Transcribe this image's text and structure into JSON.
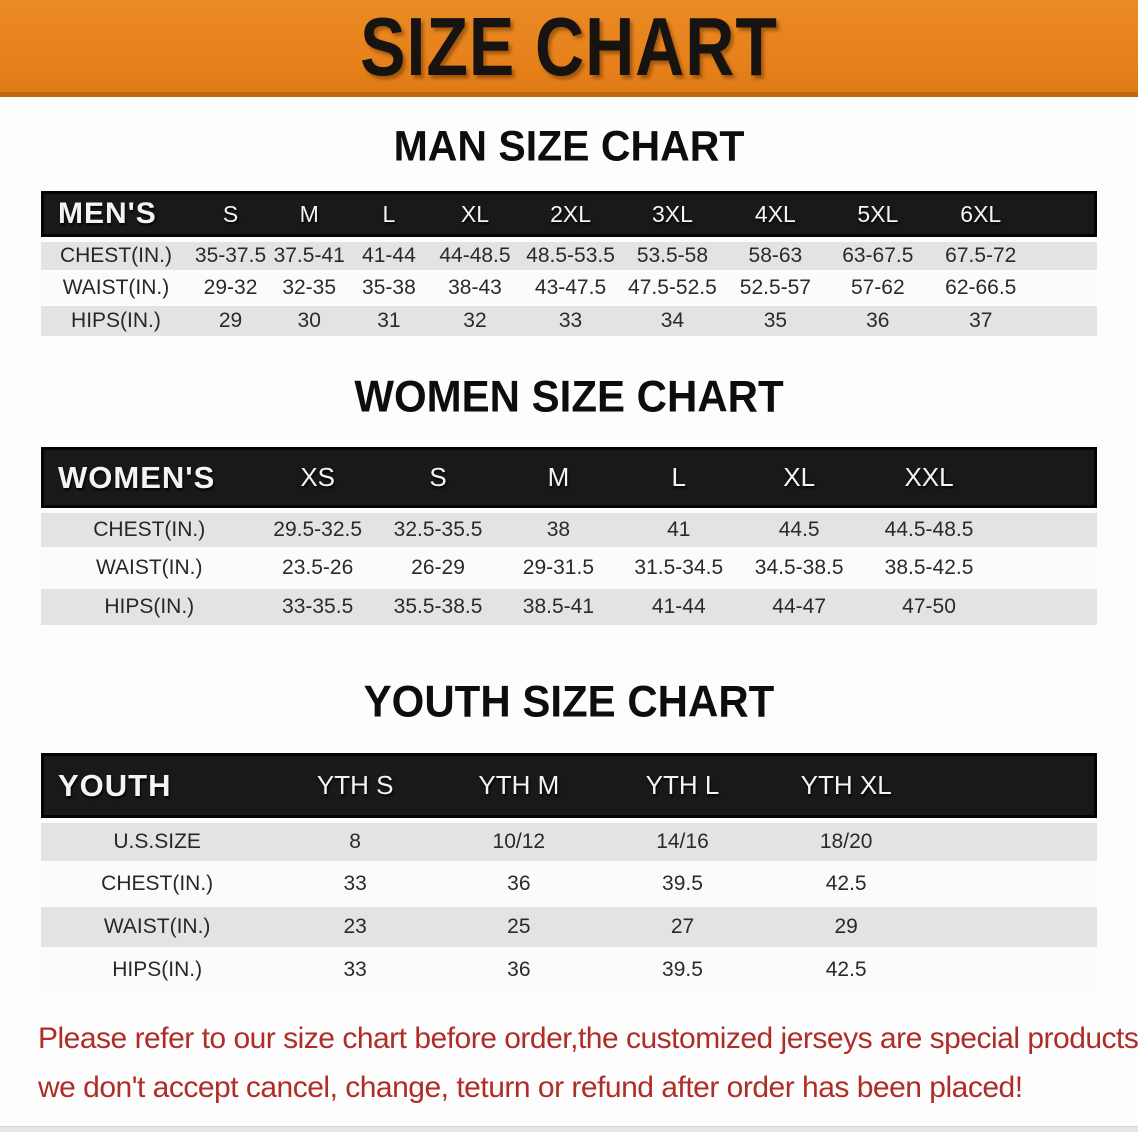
{
  "banner": {
    "title": "SIZE CHART",
    "bg_color": "#e8821c",
    "text_color": "#161310"
  },
  "sections": [
    {
      "title": "MAN SIZE CHART",
      "header_label": "MEN'S",
      "columns": [
        "S",
        "M",
        "L",
        "XL",
        "2XL",
        "3XL",
        "4XL",
        "5XL",
        "6XL"
      ],
      "rows": [
        {
          "label": "CHEST(IN.)",
          "values": [
            "35-37.5",
            "37.5-41",
            "41-44",
            "44-48.5",
            "48.5-53.5",
            "53.5-58",
            "58-63",
            "63-67.5",
            "67.5-72"
          ]
        },
        {
          "label": "WAIST(IN.)",
          "values": [
            "29-32",
            "32-35",
            "35-38",
            "38-43",
            "43-47.5",
            "47.5-52.5",
            "52.5-57",
            "57-62",
            "62-66.5"
          ]
        },
        {
          "label": "HIPS(IN.)",
          "values": [
            "29",
            "30",
            "31",
            "32",
            "33",
            "34",
            "35",
            "36",
            "37"
          ]
        }
      ]
    },
    {
      "title": "WOMEN SIZE CHART",
      "header_label": "WOMEN'S",
      "columns": [
        "XS",
        "S",
        "M",
        "L",
        "XL",
        "XXL"
      ],
      "rows": [
        {
          "label": "CHEST(IN.)",
          "values": [
            "29.5-32.5",
            "32.5-35.5",
            "38",
            "41",
            "44.5",
            "44.5-48.5"
          ]
        },
        {
          "label": "WAIST(IN.)",
          "values": [
            "23.5-26",
            "26-29",
            "29-31.5",
            "31.5-34.5",
            "34.5-38.5",
            "38.5-42.5"
          ]
        },
        {
          "label": "HIPS(IN.)",
          "values": [
            "33-35.5",
            "35.5-38.5",
            "38.5-41",
            "41-44",
            "44-47",
            "47-50"
          ]
        }
      ]
    },
    {
      "title": "YOUTH SIZE CHART",
      "header_label": "YOUTH",
      "columns": [
        "YTH S",
        "YTH M",
        "YTH L",
        "YTH XL"
      ],
      "rows": [
        {
          "label": "U.S.SIZE",
          "values": [
            "8",
            "10/12",
            "14/16",
            "18/20"
          ]
        },
        {
          "label": "CHEST(IN.)",
          "values": [
            "33",
            "36",
            "39.5",
            "42.5"
          ]
        },
        {
          "label": "WAIST(IN.)",
          "values": [
            "23",
            "25",
            "27",
            "29"
          ]
        },
        {
          "label": "HIPS(IN.)",
          "values": [
            "33",
            "36",
            "39.5",
            "42.5"
          ]
        }
      ]
    }
  ],
  "disclaimer": {
    "line1": "Please refer to our size chart before order,the customized jerseys are special products,",
    "line2": "we don't accept cancel, change, teturn or refund after order has been placed!",
    "color": "#b02d27"
  }
}
